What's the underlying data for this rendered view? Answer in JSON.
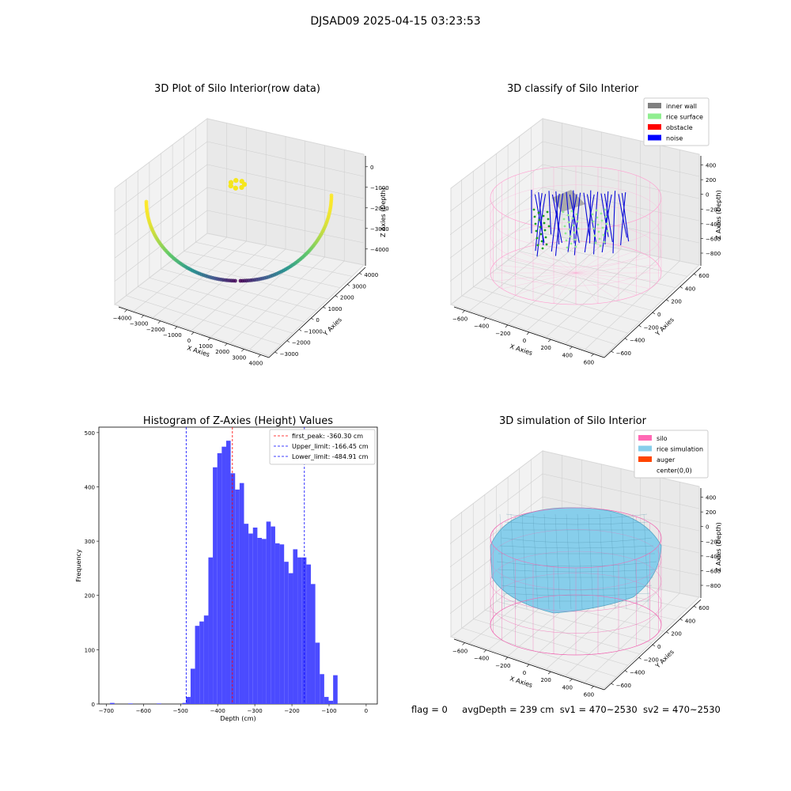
{
  "suptitle": "DJSAD09 2025-04-15 03:23:53",
  "raw_plot": {
    "title": "3D Plot of Silo Interior(row data)",
    "xlabel": "X Axies",
    "ylabel": "Y Axies",
    "zlabel": "Z Axies (Depth)",
    "xticks": [
      "−4000",
      "−3000",
      "−2000",
      "−1000",
      "0",
      "1000",
      "2000",
      "3000",
      "4000"
    ],
    "yticks": [
      "4000",
      "3000",
      "2000",
      "1000",
      "0",
      "−1000",
      "−2000",
      "−3000"
    ],
    "zticks": [
      "0",
      "−1000",
      "−2000",
      "−3000",
      "−4000"
    ]
  },
  "classify_plot": {
    "title": "3D classify of Silo Interior",
    "xlabel": "X Axies",
    "ylabel": "Y Axies",
    "zlabel": "Z Axies (Depth)",
    "xticks": [
      "−600",
      "−400",
      "−200",
      "0",
      "200",
      "400",
      "600"
    ],
    "yticks": [
      "600",
      "400",
      "200",
      "0",
      "−200",
      "−400",
      "−600"
    ],
    "zticks": [
      "400",
      "200",
      "0",
      "−200",
      "−400",
      "−600",
      "−800"
    ],
    "legend": [
      {
        "label": "inner wall",
        "color": "#808080"
      },
      {
        "label": "rice surface",
        "color": "#90ee90"
      },
      {
        "label": "obstacle",
        "color": "#ff0000"
      },
      {
        "label": "noise",
        "color": "#0000ff"
      }
    ]
  },
  "simulation_plot": {
    "title": "3D simulation of Silo Interior",
    "xlabel": "X Axies",
    "ylabel": "Y Axies",
    "zlabel": "Z Axies (Depth)",
    "xticks": [
      "−600",
      "−400",
      "−200",
      "0",
      "200",
      "400",
      "600"
    ],
    "yticks": [
      "600",
      "400",
      "200",
      "0",
      "−200",
      "−400",
      "−600"
    ],
    "zticks": [
      "400",
      "200",
      "0",
      "−200",
      "−400",
      "−600",
      "−800"
    ],
    "legend": [
      {
        "label": "silo",
        "color": "#ff69b4"
      },
      {
        "label": "rice simulation",
        "color": "#87ceeb"
      },
      {
        "label": "auger",
        "color": "#ff4500"
      },
      {
        "label": "center(0,0)",
        "color": ""
      }
    ]
  },
  "footer": {
    "flag": "flag = 0",
    "avg": "avgDepth = 239 cm",
    "sv1": "sv1 = 470~2530",
    "sv2": "sv2 = 470~2530"
  },
  "chart_data": {
    "type": "bar",
    "title": "Histogram of Z-Axies (Height) Values",
    "xlabel": "Depth (cm)",
    "ylabel": "Frequency",
    "xlim": [
      -720,
      30
    ],
    "ylim": [
      0,
      510
    ],
    "xticks": [
      -700,
      -600,
      -500,
      -400,
      -300,
      -200,
      -100,
      0
    ],
    "yticks": [
      0,
      100,
      200,
      300,
      400,
      500
    ],
    "bin_width": 12,
    "bins": [
      {
        "x": -690,
        "v": 2
      },
      {
        "x": -641,
        "v": 1
      },
      {
        "x": -564,
        "v": 1
      },
      {
        "x": -495,
        "v": 2
      },
      {
        "x": -485,
        "v": 13
      },
      {
        "x": -473,
        "v": 65
      },
      {
        "x": -461,
        "v": 144
      },
      {
        "x": -449,
        "v": 152
      },
      {
        "x": -437,
        "v": 163
      },
      {
        "x": -425,
        "v": 270
      },
      {
        "x": -413,
        "v": 436
      },
      {
        "x": -401,
        "v": 462
      },
      {
        "x": -389,
        "v": 474
      },
      {
        "x": -377,
        "v": 485
      },
      {
        "x": -365,
        "v": 425
      },
      {
        "x": -353,
        "v": 395
      },
      {
        "x": -341,
        "v": 407
      },
      {
        "x": -329,
        "v": 332
      },
      {
        "x": -317,
        "v": 314
      },
      {
        "x": -305,
        "v": 325
      },
      {
        "x": -293,
        "v": 306
      },
      {
        "x": -281,
        "v": 304
      },
      {
        "x": -269,
        "v": 336
      },
      {
        "x": -257,
        "v": 327
      },
      {
        "x": -245,
        "v": 296
      },
      {
        "x": -233,
        "v": 294
      },
      {
        "x": -221,
        "v": 262
      },
      {
        "x": -209,
        "v": 241
      },
      {
        "x": -197,
        "v": 285
      },
      {
        "x": -185,
        "v": 270
      },
      {
        "x": -173,
        "v": 270
      },
      {
        "x": -161,
        "v": 257
      },
      {
        "x": -149,
        "v": 221
      },
      {
        "x": -137,
        "v": 113
      },
      {
        "x": -125,
        "v": 55
      },
      {
        "x": -113,
        "v": 13
      },
      {
        "x": -101,
        "v": 6
      },
      {
        "x": -89,
        "v": 53
      }
    ],
    "vlines": [
      {
        "x": -360.3,
        "color": "#ff0000",
        "label": "first_peak: -360.30 cm"
      },
      {
        "x": -166.45,
        "color": "#0000ff",
        "label": "Upper_limit: -166.45 cm"
      },
      {
        "x": -484.91,
        "color": "#0000ff",
        "label": "Lower_limit: -484.91 cm"
      }
    ],
    "bar_color": "#4b4bff"
  }
}
